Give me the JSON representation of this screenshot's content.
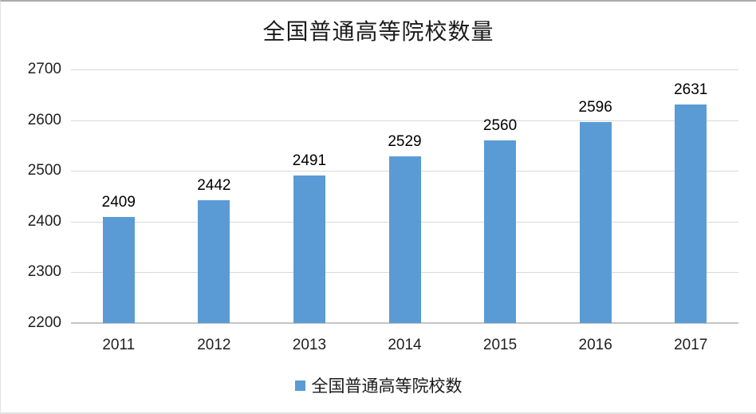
{
  "chart_data": {
    "type": "bar",
    "title": "全国普通高等院校数量",
    "categories": [
      "2011",
      "2012",
      "2013",
      "2014",
      "2015",
      "2016",
      "2017"
    ],
    "series": [
      {
        "name": "全国普通高等院校数",
        "values": [
          2409,
          2442,
          2491,
          2529,
          2560,
          2596,
          2631
        ]
      }
    ],
    "xlabel": "",
    "ylabel": "",
    "ylim": [
      2200,
      2700
    ],
    "yticks": [
      2200,
      2300,
      2400,
      2500,
      2600,
      2700
    ],
    "grid": true,
    "data_labels": true,
    "legend_position": "bottom"
  },
  "legend": {
    "label": "全国普通高等院校数"
  },
  "colors": {
    "bar": "#5b9bd5",
    "gridline": "#d9d9d9",
    "axis_line": "#c4c4c4",
    "text": "#1f1f1f"
  }
}
